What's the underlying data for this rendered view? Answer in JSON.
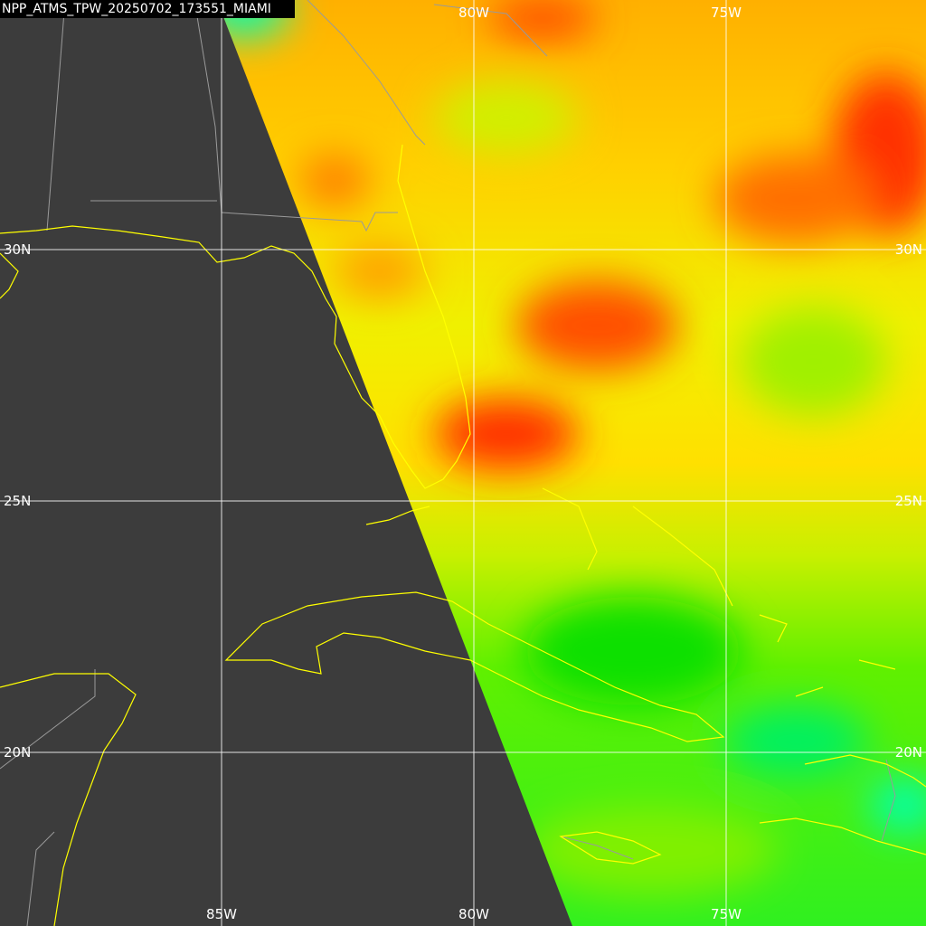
{
  "title": "NPP_ATMS_TPW_20250702_173551_MIAMI",
  "longitude_labels_top": [
    "80W",
    "75W"
  ],
  "longitude_labels_bottom": [
    "85W",
    "80W",
    "75W"
  ],
  "latitude_labels_left": [
    "30N",
    "25N",
    "20N"
  ],
  "latitude_labels_right": [
    "30N",
    "25N",
    "20N"
  ]
}
